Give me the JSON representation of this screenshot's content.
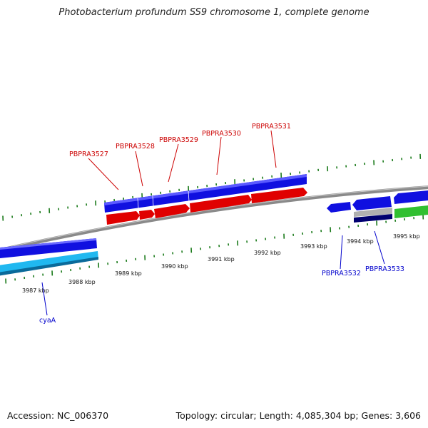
{
  "title": "Photobacterium profundum SS9 chromosome 1, complete genome",
  "footer": {
    "accession": "Accession: NC_006370",
    "stats": "Topology: circular; Length: 4,085,304 bp; Genes: 3,606"
  },
  "colors": {
    "forward_cds": "#e00000",
    "reverse_cds": "#1010e0",
    "forward_label": "#cc0000",
    "reverse_label": "#0000cc",
    "backbone": "#8a8a8a",
    "ticks": "#1a7a1a",
    "light_blue_feature": "#20b8f0",
    "green_feature": "#30c030",
    "gray_feature": "#b0b0b0",
    "navy_feature": "#000070"
  },
  "scale": {
    "tick_labels": [
      "3987 kbp",
      "3988 kbp",
      "3989 kbp",
      "3990 kbp",
      "3991 kbp",
      "3992 kbp",
      "3993 kbp",
      "3994 kbp",
      "3995 kbp"
    ]
  },
  "genes": {
    "forward": [
      "PBPRA3527",
      "PBPRA3528",
      "PBPRA3529",
      "PBPRA3530",
      "PBPRA3531"
    ],
    "reverse": [
      "cyaA",
      "PBPRA3532",
      "PBPRA3533"
    ]
  }
}
